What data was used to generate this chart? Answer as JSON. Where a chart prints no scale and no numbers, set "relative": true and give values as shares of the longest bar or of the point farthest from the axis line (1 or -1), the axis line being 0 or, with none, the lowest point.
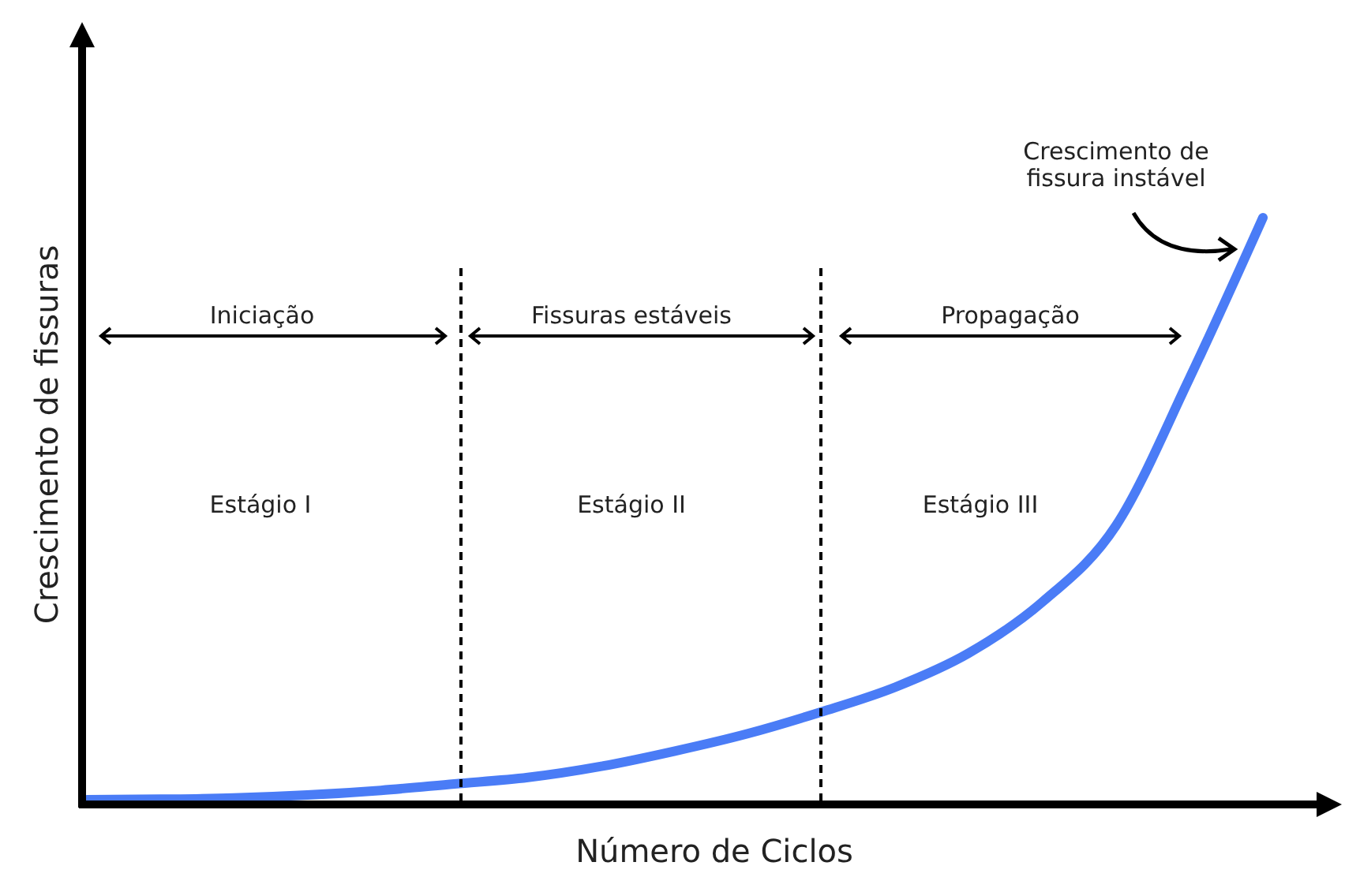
{
  "chart_data": {
    "type": "line",
    "relative": true,
    "xlabel": "Número de Ciclos",
    "ylabel": "Crescimento de fissuras",
    "categories": [
      null,
      null,
      null,
      null,
      null,
      null,
      null,
      null,
      null,
      null,
      null,
      null,
      null,
      null,
      null,
      null,
      null
    ],
    "series": [
      {
        "color": "#4a7cf6",
        "values": [
          0.008,
          0.009,
          0.011,
          0.016,
          0.024,
          0.035,
          0.046,
          0.065,
          0.091,
          0.121,
          0.158,
          0.2,
          0.258,
          0.345,
          0.475,
          0.726,
          1
        ]
      }
    ],
    "annotations": [
      "Iniciação",
      "Fissuras estáveis",
      "Propagação",
      "Estágio I",
      "Estágio II",
      "Estágio III",
      "Crescimento de\nfissura instável"
    ]
  }
}
